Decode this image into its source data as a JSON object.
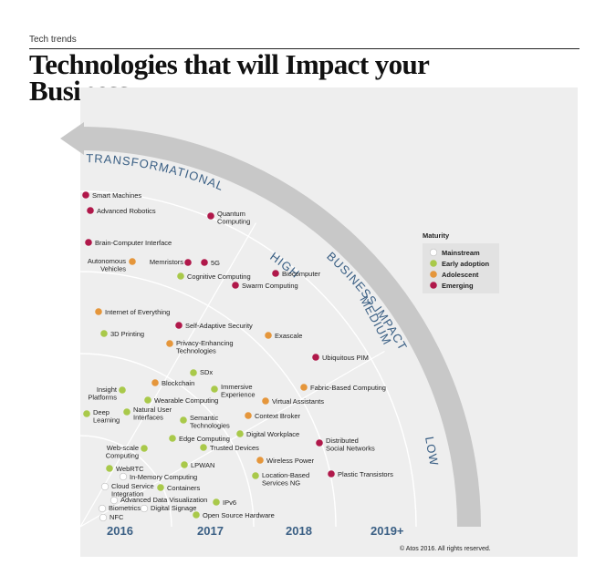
{
  "header": {
    "section": "Tech trends",
    "title_line1": "Technologies that will Impact your",
    "title_line2": "Business"
  },
  "diagram": {
    "axis_labels": {
      "transformational": "TRANSFORMATIONAL",
      "business_impact": "BUSINESS IMPACT",
      "high": "HIGH",
      "medium": "MEDIUM",
      "low": "LOW"
    },
    "years": [
      "2016",
      "2017",
      "2018",
      "2019+"
    ],
    "colors": {
      "mainstream": "#ffffff",
      "early_adoption": "#a9c94a",
      "adolescent": "#e5963b",
      "emerging": "#b0184a",
      "arrow": "#c8c8c8",
      "axis_text": "#3a5f84",
      "panel": "#eeeeee",
      "ring": "#ffffff"
    },
    "legend": {
      "title": "Maturity",
      "items": [
        {
          "label": "Mainstream",
          "color": "#ffffff"
        },
        {
          "label": "Early adoption",
          "color": "#a9c94a"
        },
        {
          "label": "Adolescent",
          "color": "#e5963b"
        },
        {
          "label": "Emerging",
          "color": "#b0184a"
        }
      ]
    },
    "technologies": [
      {
        "id": "smart-machines",
        "lines": [
          "Smart Machines"
        ],
        "maturity": "emerging"
      },
      {
        "id": "advanced-robotics",
        "lines": [
          "Advanced Robotics"
        ],
        "maturity": "emerging"
      },
      {
        "id": "quantum-computing",
        "lines": [
          "Quantum",
          "Computing"
        ],
        "maturity": "emerging"
      },
      {
        "id": "brain-computer-interface",
        "lines": [
          "Brain-Computer Interface"
        ],
        "maturity": "emerging"
      },
      {
        "id": "autonomous-vehicles",
        "lines": [
          "Autonomous",
          "Vehicles"
        ],
        "maturity": "adolescent"
      },
      {
        "id": "memristors",
        "lines": [
          "Memristors"
        ],
        "maturity": "emerging"
      },
      {
        "id": "5g",
        "lines": [
          "5G"
        ],
        "maturity": "emerging"
      },
      {
        "id": "cognitive-computing",
        "lines": [
          "Cognitive Computing"
        ],
        "maturity": "early_adoption"
      },
      {
        "id": "biocomputer",
        "lines": [
          "Biocomputer"
        ],
        "maturity": "emerging"
      },
      {
        "id": "swarm-computing",
        "lines": [
          "Swarm Computing"
        ],
        "maturity": "emerging"
      },
      {
        "id": "internet-of-everything",
        "lines": [
          "Internet of Everything"
        ],
        "maturity": "adolescent"
      },
      {
        "id": "self-adaptive-security",
        "lines": [
          "Self-Adaptive Security"
        ],
        "maturity": "emerging"
      },
      {
        "id": "3d-printing",
        "lines": [
          "3D Printing"
        ],
        "maturity": "early_adoption"
      },
      {
        "id": "privacy-enhancing-technologies",
        "lines": [
          "Privacy-Enhancing",
          "Technologies"
        ],
        "maturity": "adolescent"
      },
      {
        "id": "exascale",
        "lines": [
          "Exascale"
        ],
        "maturity": "adolescent"
      },
      {
        "id": "ubiquitous-pim",
        "lines": [
          "Ubiquitous PIM"
        ],
        "maturity": "emerging"
      },
      {
        "id": "sdx",
        "lines": [
          "SDx"
        ],
        "maturity": "early_adoption"
      },
      {
        "id": "blockchain",
        "lines": [
          "Blockchain"
        ],
        "maturity": "adolescent"
      },
      {
        "id": "insight-platforms",
        "lines": [
          "Insight",
          "Platforms"
        ],
        "maturity": "early_adoption"
      },
      {
        "id": "immersive-experience",
        "lines": [
          "Immersive",
          "Experience"
        ],
        "maturity": "early_adoption"
      },
      {
        "id": "fabric-based-computing",
        "lines": [
          "Fabric-Based Computing"
        ],
        "maturity": "adolescent"
      },
      {
        "id": "wearable-computing",
        "lines": [
          "Wearable Computing"
        ],
        "maturity": "early_adoption"
      },
      {
        "id": "virtual-assistants",
        "lines": [
          "Virtual Assistants"
        ],
        "maturity": "adolescent"
      },
      {
        "id": "deep-learning",
        "lines": [
          "Deep",
          "Learning"
        ],
        "maturity": "early_adoption"
      },
      {
        "id": "natural-user-interfaces",
        "lines": [
          "Natural User",
          "Interfaces"
        ],
        "maturity": "early_adoption"
      },
      {
        "id": "semantic-technologies",
        "lines": [
          "Semantic",
          "Technologies"
        ],
        "maturity": "early_adoption"
      },
      {
        "id": "context-broker",
        "lines": [
          "Context Broker"
        ],
        "maturity": "adolescent"
      },
      {
        "id": "digital-workplace",
        "lines": [
          "Digital Workplace"
        ],
        "maturity": "early_adoption"
      },
      {
        "id": "edge-computing",
        "lines": [
          "Edge Computing"
        ],
        "maturity": "early_adoption"
      },
      {
        "id": "distributed-social-networks",
        "lines": [
          "Distributed",
          "Social Networks"
        ],
        "maturity": "emerging"
      },
      {
        "id": "web-scale-computing",
        "lines": [
          "Web-scale",
          "Computing"
        ],
        "maturity": "early_adoption"
      },
      {
        "id": "trusted-devices",
        "lines": [
          "Trusted Devices"
        ],
        "maturity": "early_adoption"
      },
      {
        "id": "wireless-power",
        "lines": [
          "Wireless Power"
        ],
        "maturity": "adolescent"
      },
      {
        "id": "lpwan",
        "lines": [
          "LPWAN"
        ],
        "maturity": "early_adoption"
      },
      {
        "id": "webrtc",
        "lines": [
          "WebRTC"
        ],
        "maturity": "early_adoption"
      },
      {
        "id": "plastic-transistors",
        "lines": [
          "Plastic Transistors"
        ],
        "maturity": "emerging"
      },
      {
        "id": "location-based-services-ng",
        "lines": [
          "Location-Based",
          "Services NG"
        ],
        "maturity": "early_adoption"
      },
      {
        "id": "in-memory-computing",
        "lines": [
          "In-Memory Computing"
        ],
        "maturity": "mainstream"
      },
      {
        "id": "cloud-service-integration",
        "lines": [
          "Cloud Service",
          "Integration"
        ],
        "maturity": "mainstream"
      },
      {
        "id": "containers",
        "lines": [
          "Containers"
        ],
        "maturity": "early_adoption"
      },
      {
        "id": "advanced-data-visualization",
        "lines": [
          "Advanced Data Visualization"
        ],
        "maturity": "mainstream"
      },
      {
        "id": "ipv6",
        "lines": [
          "IPv6"
        ],
        "maturity": "early_adoption"
      },
      {
        "id": "biometrics",
        "lines": [
          "Biometrics"
        ],
        "maturity": "mainstream"
      },
      {
        "id": "digital-signage",
        "lines": [
          "Digital Signage"
        ],
        "maturity": "mainstream"
      },
      {
        "id": "open-source-hardware",
        "lines": [
          "Open Source Hardware"
        ],
        "maturity": "early_adoption"
      },
      {
        "id": "nfc",
        "lines": [
          "NFC"
        ],
        "maturity": "mainstream"
      }
    ],
    "copyright": "© Atos 2016. All rights reserved."
  }
}
